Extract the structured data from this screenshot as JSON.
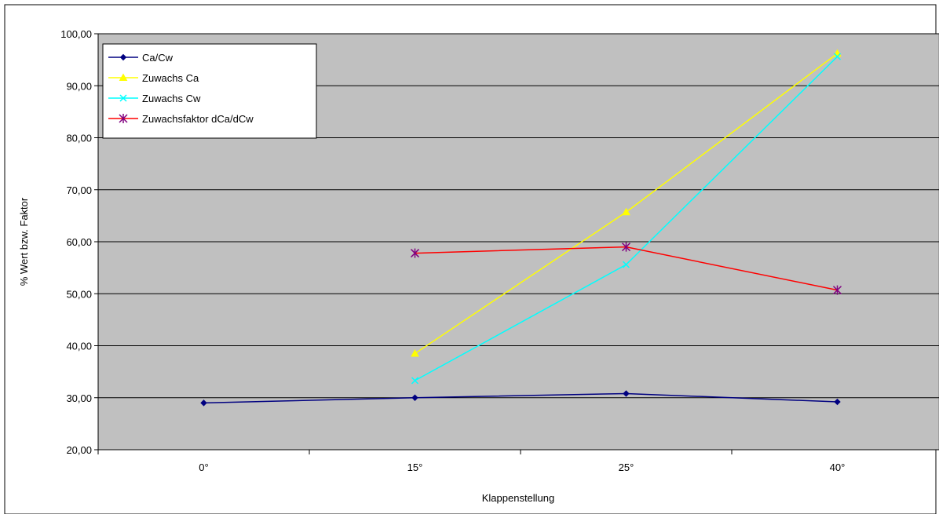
{
  "chart_data": {
    "type": "line",
    "title": "",
    "xlabel": "Klappenstellung",
    "ylabel": "% Wert bzw. Faktor",
    "categories": [
      "0°",
      "15°",
      "25°",
      "40°"
    ],
    "ylim": [
      20,
      100
    ],
    "yticks": [
      "20,00",
      "30,00",
      "40,00",
      "50,00",
      "60,00",
      "70,00",
      "80,00",
      "90,00",
      "100,00"
    ],
    "grid": true,
    "legend_position": "top-left",
    "plot_background": "#c0c0c0",
    "series": [
      {
        "name": "Ca/Cw",
        "color": "#000080",
        "marker": "diamond",
        "values": [
          29.0,
          30.0,
          30.8,
          29.2
        ]
      },
      {
        "name": "Zuwachs Ca",
        "color": "#ffff00",
        "marker": "triangle",
        "values": [
          null,
          38.5,
          65.7,
          96.2
        ]
      },
      {
        "name": "Zuwachs Cw",
        "color": "#00ffff",
        "marker": "x",
        "values": [
          null,
          33.3,
          55.6,
          95.6
        ]
      },
      {
        "name": "Zuwachsfaktor dCa/dCw",
        "color": "#ff0000",
        "marker": "star",
        "values": [
          null,
          57.8,
          59.0,
          50.7
        ]
      }
    ]
  }
}
